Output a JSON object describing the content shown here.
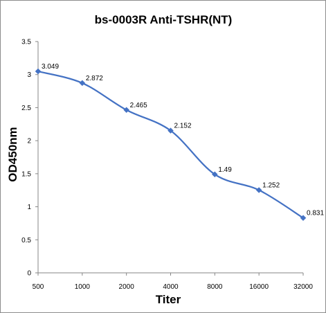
{
  "chart_data": {
    "type": "line",
    "title": "bs-0003R Anti-TSHR(NT)",
    "xlabel": "Titer",
    "ylabel": "OD450nm",
    "categories": [
      "500",
      "1000",
      "2000",
      "4000",
      "8000",
      "16000",
      "32000"
    ],
    "series": [
      {
        "values": [
          3.049,
          2.872,
          2.465,
          2.152,
          1.49,
          1.252,
          0.831
        ],
        "labels": [
          "3.049",
          "2.872",
          "2.465",
          "2.152",
          "1.49",
          "1.252",
          "0.831"
        ],
        "color": "#4472c4",
        "marker": "diamond",
        "smooth": true
      }
    ],
    "ylim": [
      0,
      3.5
    ],
    "yticks": [
      0,
      0.5,
      1,
      1.5,
      2,
      2.5,
      3,
      3.5
    ],
    "ytick_labels": [
      "0",
      "0.5",
      "1",
      "1.5",
      "2",
      "2.5",
      "3",
      "3.5"
    ],
    "grid": false,
    "legend": "none"
  }
}
